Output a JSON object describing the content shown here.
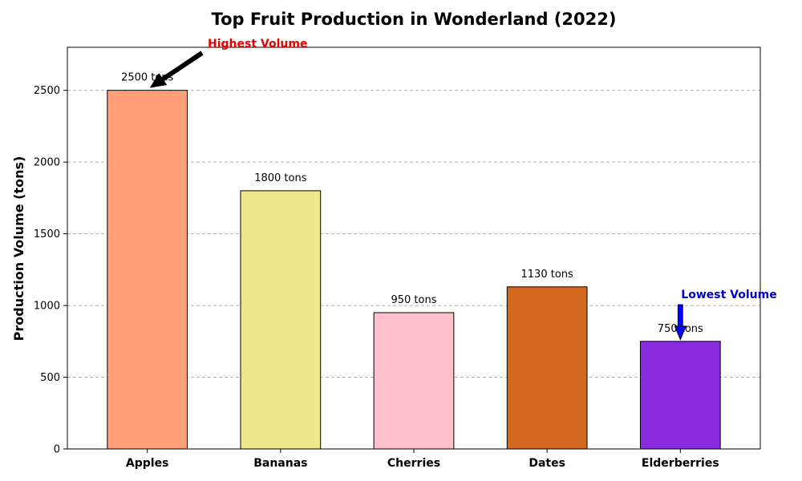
{
  "chart_data": {
    "type": "bar",
    "title": "Top Fruit Production in Wonderland (2022)",
    "xlabel": "",
    "ylabel": "Production Volume (tons)",
    "ylim": [
      0,
      2800
    ],
    "yticks": [
      0,
      500,
      1000,
      1500,
      2000,
      2500
    ],
    "grid": "y-dashed",
    "categories": [
      "Apples",
      "Bananas",
      "Cherries",
      "Dates",
      "Elderberries"
    ],
    "values": [
      2500,
      1800,
      950,
      1130,
      750
    ],
    "bar_colors": [
      "#FFA07A",
      "#F0E68C",
      "#FFC0CB",
      "#D2691E",
      "#8A2BE2"
    ],
    "data_labels": [
      "2500 tons",
      "1800 tons",
      "950 tons",
      "1130 tons",
      "750 tons"
    ],
    "annotations": [
      {
        "text": "Highest Volume",
        "target_category": "Apples",
        "target_value": 2500,
        "color": "#E60000",
        "arrow_color": "#000000"
      },
      {
        "text": "Lowest Volume",
        "target_category": "Elderberries",
        "target_value": 750,
        "color": "#0000CC",
        "arrow_color": "#0000FF"
      }
    ]
  }
}
